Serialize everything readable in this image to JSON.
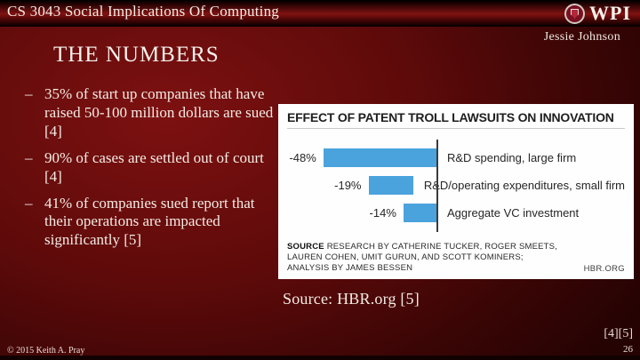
{
  "header": {
    "course_title": "CS 3043 Social Implications Of Computing",
    "author": "Jessie Johnson",
    "logo_text": "WPI"
  },
  "slide": {
    "title": "THE NUMBERS",
    "bullet_marker": "–",
    "bullets": [
      "35% of start up companies that have raised 50-100 million dollars are sued [4]",
      "90% of cases are settled out of court [4]",
      "41% of companies sued report that their operations are impacted significantly [5]"
    ],
    "caption": "Source: HBR.org [5]"
  },
  "chart_data": {
    "type": "bar",
    "orientation": "horizontal",
    "title": "EFFECT OF PATENT TROLL LAWSUITS ON INNOVATION",
    "categories": [
      "R&D spending, large firm",
      "R&D/operating expenditures, small firm",
      "Aggregate VC investment"
    ],
    "values": [
      -48,
      -19,
      -14
    ],
    "value_labels": [
      "-48%",
      "-19%",
      "-14%"
    ],
    "xlim": [
      -50,
      0
    ],
    "bar_color": "#4aa3dc",
    "grid": false,
    "legend": false,
    "source_label": "SOURCE",
    "source_rest": "RESEARCH BY CATHERINE TUCKER, ROGER SMEETS, LAUREN COHEN, UMIT GURUN, AND SCOTT KOMINERS; ANALYSIS BY JAMES BESSEN",
    "brand": "HBR.ORG"
  },
  "footer": {
    "copyright": "© 2015 Keith A. Pray",
    "references": "[4][5]",
    "page_number": "26"
  }
}
